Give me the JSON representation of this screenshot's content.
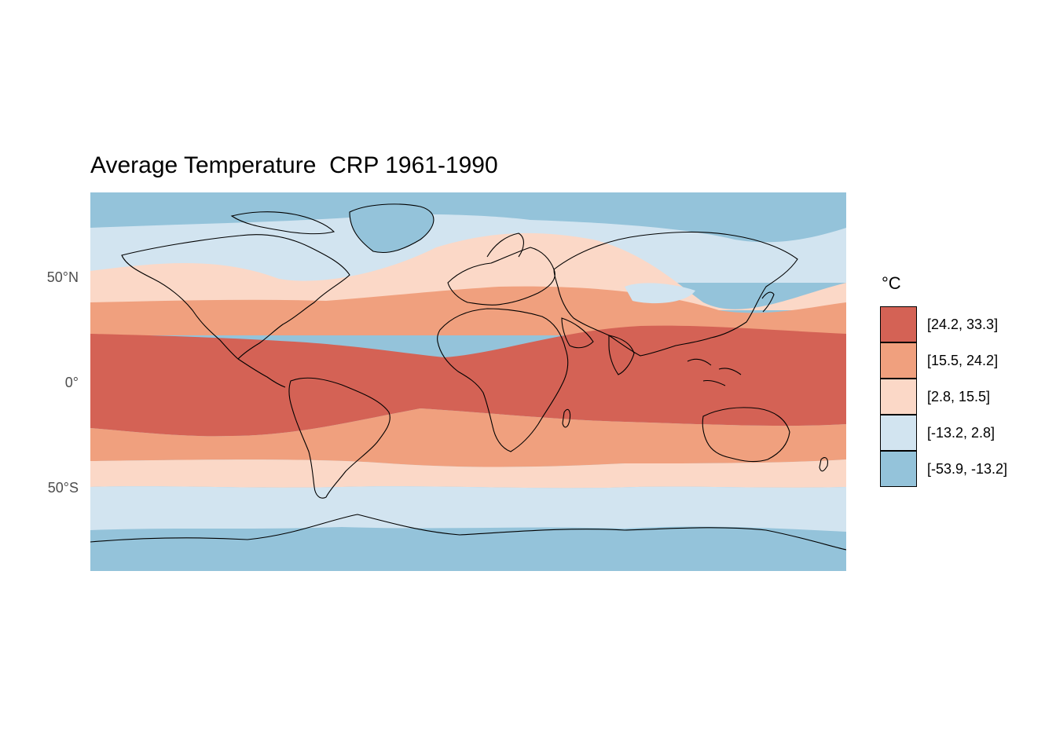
{
  "title": "Average Temperature  CRP 1961-1990",
  "y_ticks": [
    "50°N",
    "0°",
    "50°S"
  ],
  "legend": {
    "title": "°C",
    "items": [
      {
        "label": "[24.2, 33.3]",
        "color": "#d46255"
      },
      {
        "label": "[15.5, 24.2]",
        "color": "#f0a07e"
      },
      {
        "label": "[2.8, 15.5]",
        "color": "#fbd8c7"
      },
      {
        "label": "[-13.2, 2.8]",
        "color": "#d2e4f0"
      },
      {
        "label": "[-53.9, -13.2]",
        "color": "#94c3da"
      }
    ]
  }
}
